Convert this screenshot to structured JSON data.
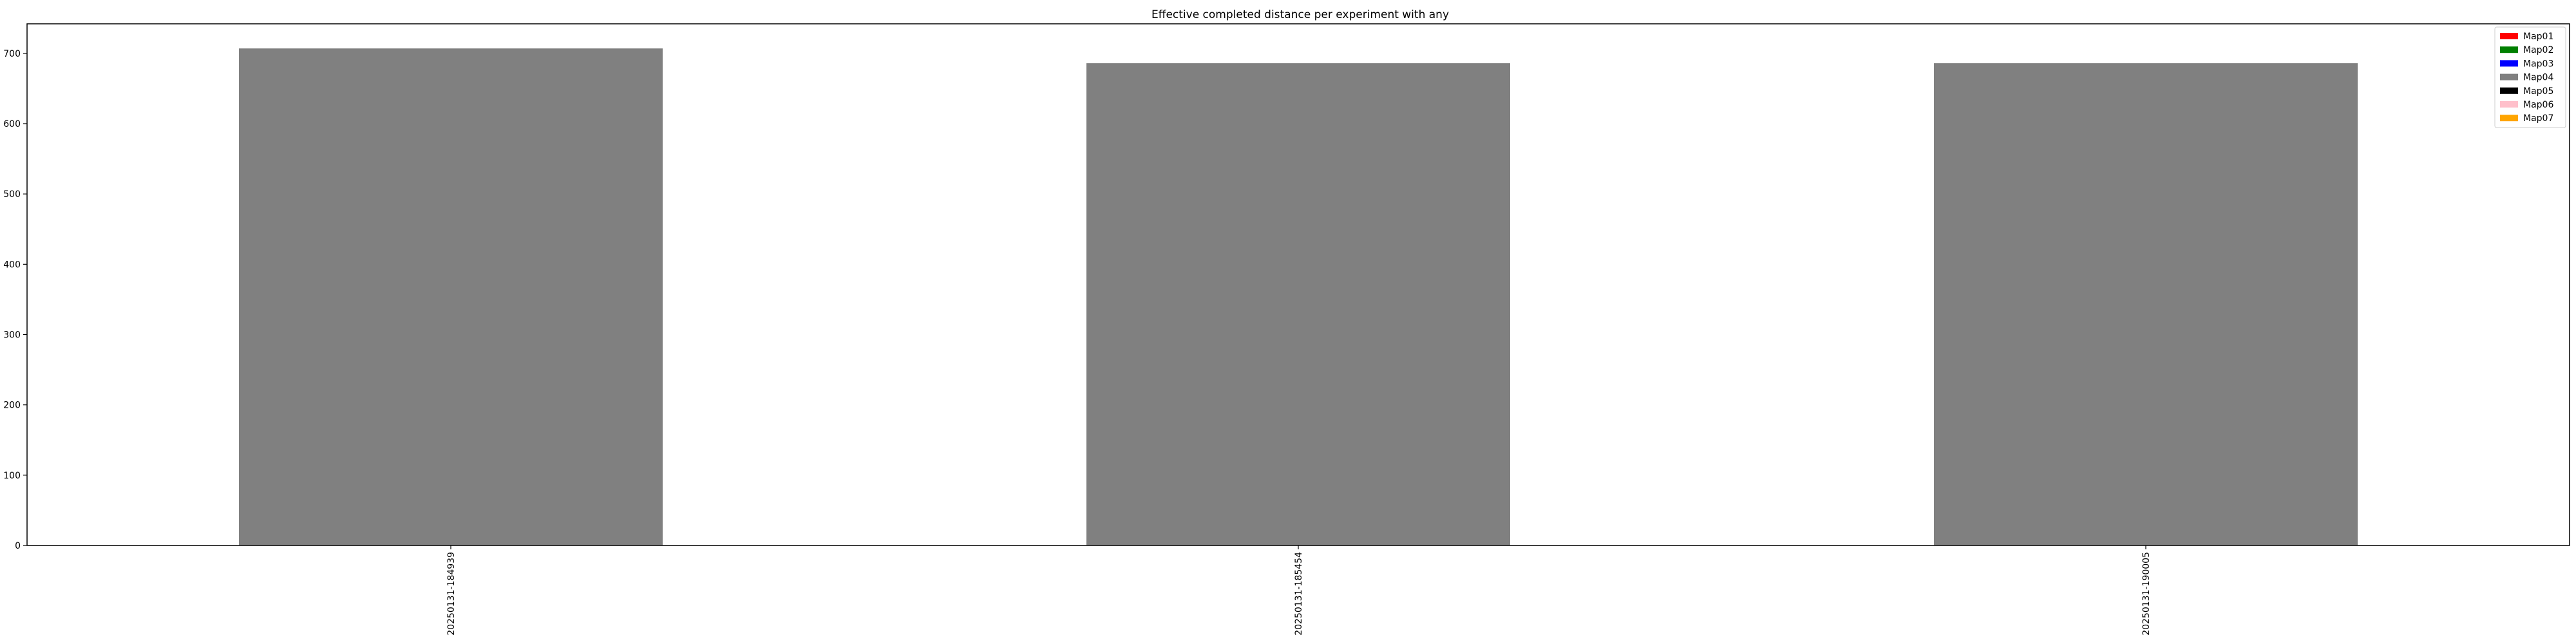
{
  "chart_data": {
    "type": "bar",
    "title": "Effective completed distance per experiment with any",
    "xlabel": "",
    "ylabel": "",
    "categories": [
      "20250131-184939",
      "20250131-185454",
      "20250131-190005"
    ],
    "series": [
      {
        "name": "Map01",
        "color": "#ff0000",
        "values": [
          0,
          0,
          0
        ]
      },
      {
        "name": "Map02",
        "color": "#008000",
        "values": [
          0,
          0,
          0
        ]
      },
      {
        "name": "Map03",
        "color": "#0000ff",
        "values": [
          0,
          0,
          0
        ]
      },
      {
        "name": "Map04",
        "color": "#808080",
        "values": [
          707,
          686,
          686
        ]
      },
      {
        "name": "Map05",
        "color": "#000000",
        "values": [
          0,
          0,
          0
        ]
      },
      {
        "name": "Map06",
        "color": "#ffc0cb",
        "values": [
          0,
          0,
          0
        ]
      },
      {
        "name": "Map07",
        "color": "#ffa500",
        "values": [
          0,
          0,
          0
        ]
      }
    ],
    "stacked": true,
    "ylim": [
      0,
      742
    ],
    "yticks": [
      0,
      100,
      200,
      300,
      400,
      500,
      600,
      700
    ],
    "grid": false,
    "legend_position": "top-right"
  }
}
